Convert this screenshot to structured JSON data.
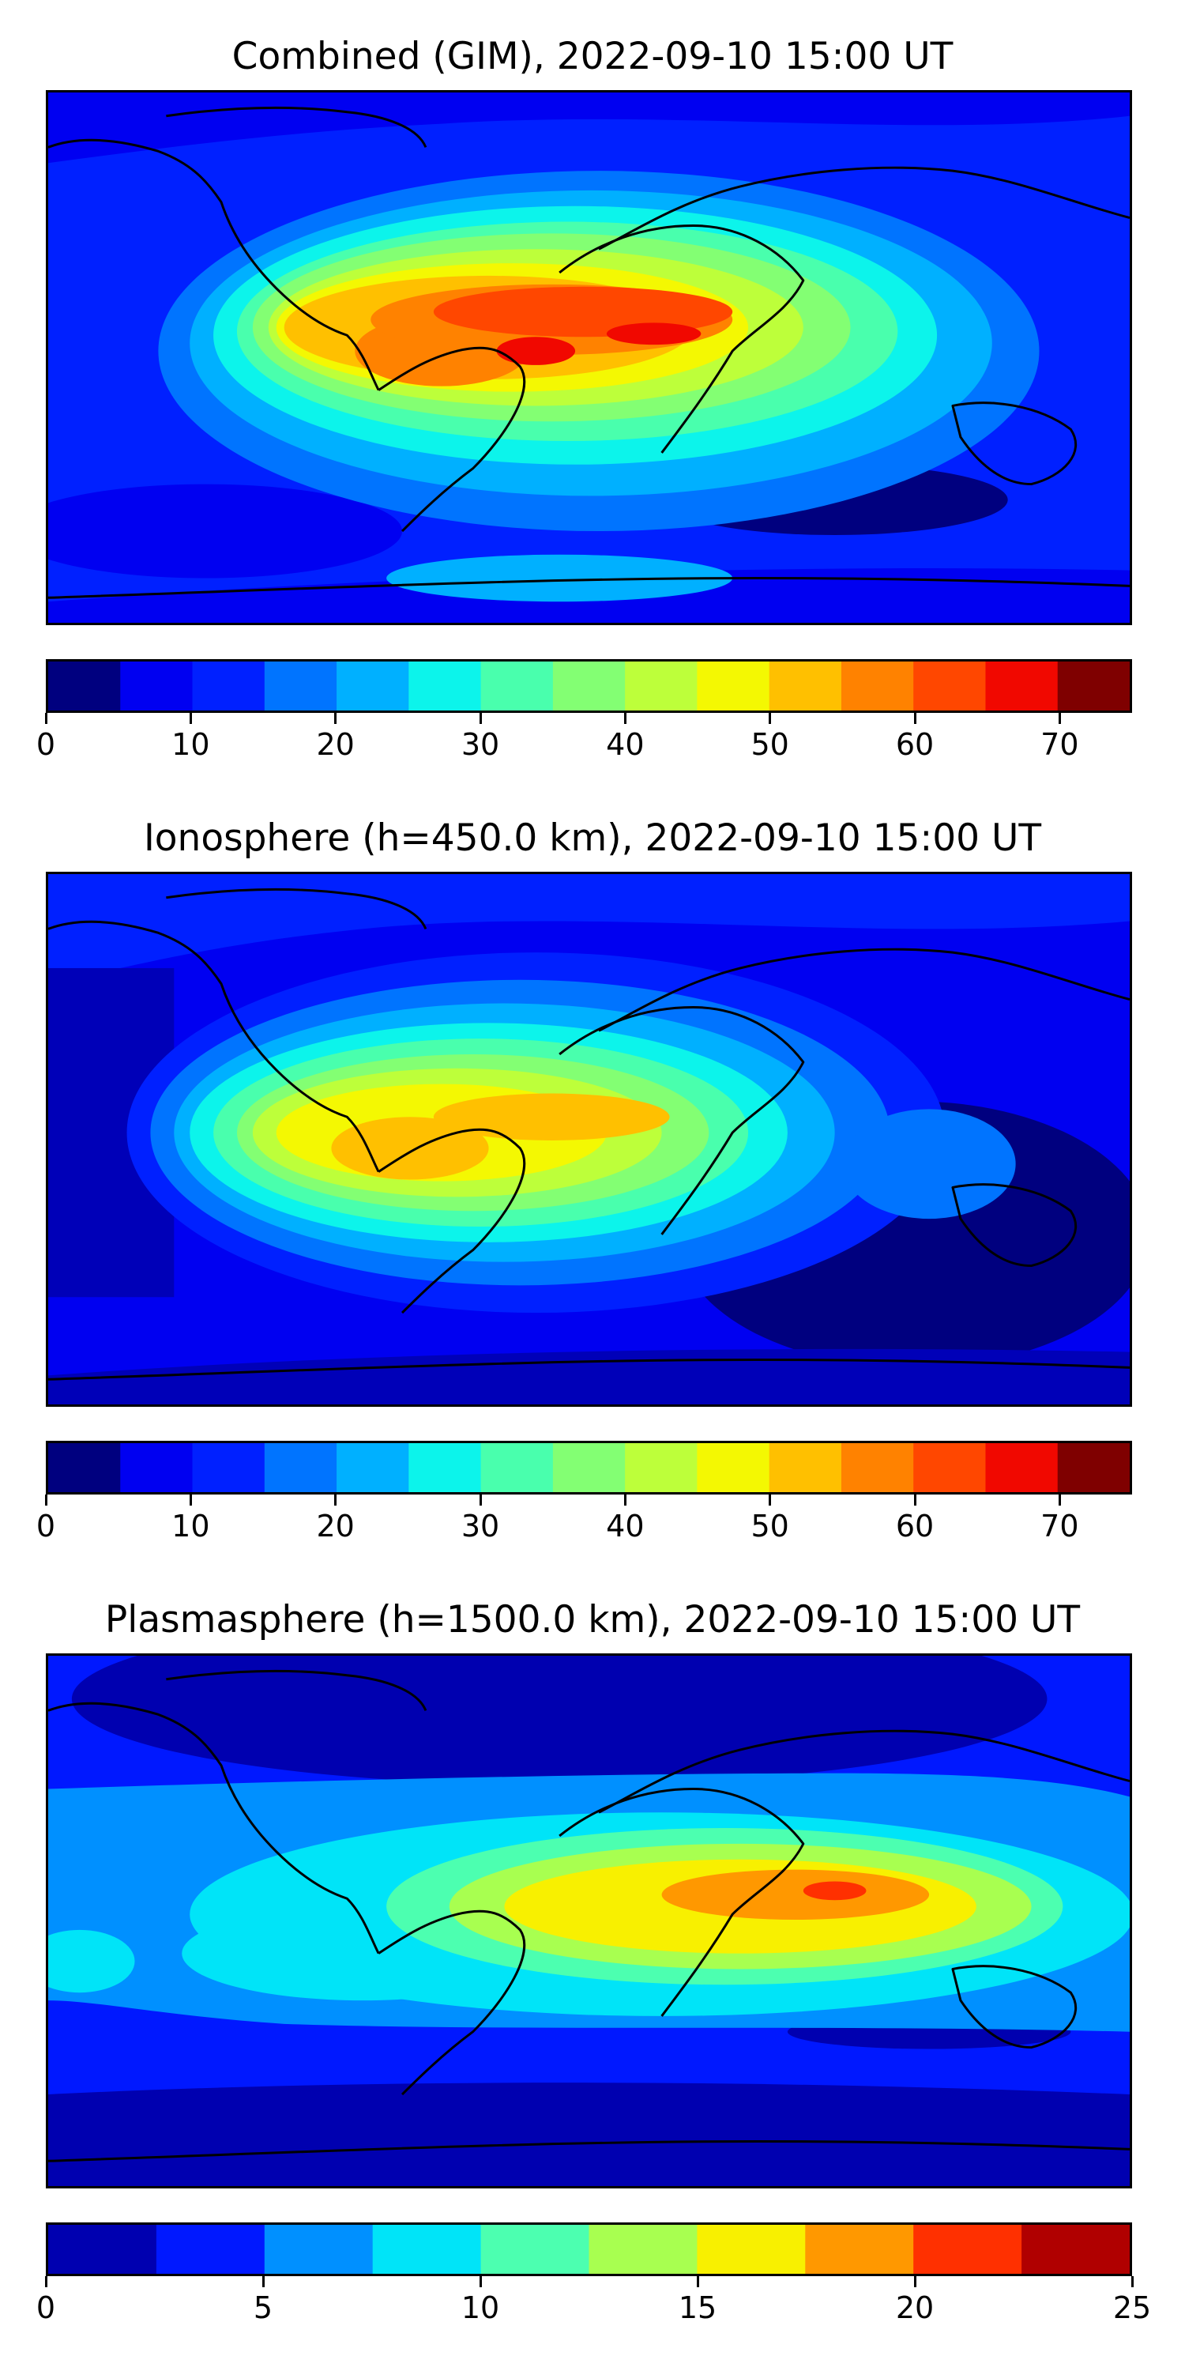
{
  "panels": [
    {
      "title": "Combined (GIM), 2022-09-10 15:00 UT",
      "levels": [
        0,
        5,
        10,
        15,
        20,
        25,
        30,
        35,
        40,
        45,
        50,
        55,
        60,
        65,
        70,
        75
      ],
      "colors": [
        "#00007f",
        "#0000f1",
        "#0020ff",
        "#0074ff",
        "#00b0ff",
        "#0cf4eb",
        "#49ffad",
        "#83ff73",
        "#bdff3a",
        "#f4f802",
        "#ffc000",
        "#ff8200",
        "#ff4700",
        "#f10800",
        "#7f0000"
      ],
      "ticks": [
        0,
        10,
        20,
        30,
        40,
        50,
        60,
        70
      ],
      "vmin": 0,
      "vmax": 75
    },
    {
      "title": "Ionosphere  (h=450.0 km), 2022-09-10 15:00 UT",
      "levels": [
        0,
        5,
        10,
        15,
        20,
        25,
        30,
        35,
        40,
        45,
        50,
        55,
        60,
        65,
        70,
        75
      ],
      "colors": [
        "#00007f",
        "#0000f1",
        "#0020ff",
        "#0074ff",
        "#00b0ff",
        "#0cf4eb",
        "#49ffad",
        "#83ff73",
        "#bdff3a",
        "#f4f802",
        "#ffc000",
        "#ff8200",
        "#ff4700",
        "#f10800",
        "#7f0000"
      ],
      "ticks": [
        0,
        10,
        20,
        30,
        40,
        50,
        60,
        70
      ],
      "vmin": 0,
      "vmax": 75
    },
    {
      "title": "Plasmasphere (h=1500.0 km), 2022-09-10 15:00 UT",
      "levels": [
        0,
        2.5,
        5,
        7.5,
        10,
        12.5,
        15,
        17.5,
        20,
        22.5,
        25
      ],
      "colors": [
        "#0000b0",
        "#0018ff",
        "#0090ff",
        "#00e4f8",
        "#4cffb0",
        "#a8ff50",
        "#f8f000",
        "#ff9800",
        "#ff3000",
        "#b00000"
      ],
      "ticks": [
        0,
        5,
        10,
        15,
        20,
        25
      ],
      "vmin": 0,
      "vmax": 25
    }
  ]
}
